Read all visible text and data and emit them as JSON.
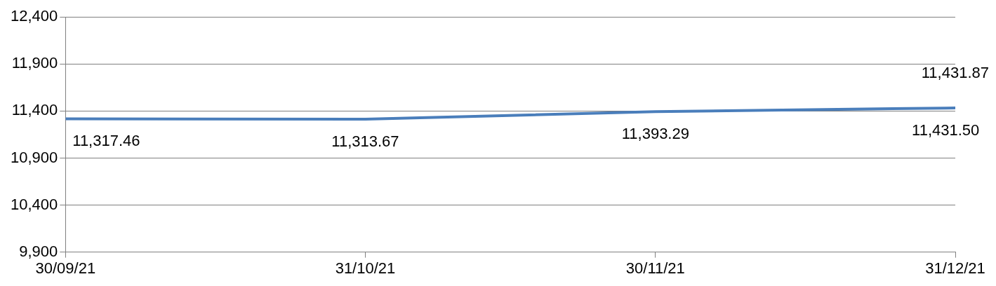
{
  "chart_data": {
    "type": "line",
    "x": [
      "2021-09-30",
      "2021-10-31",
      "2021-11-30",
      "2021-12-30",
      "2021-12-31"
    ],
    "series": [
      {
        "color": "#4a7ebb",
        "values": [
          11317.46,
          11313.67,
          11393.29,
          11431.5,
          11431.87
        ],
        "value_labels": [
          "11,317.46",
          "11,313.67",
          "11,393.29",
          "11,431.50",
          "11,431.87"
        ]
      }
    ],
    "xlim": [
      "2021-09-30",
      "2021-12-31"
    ],
    "xticks": [
      {
        "value": "2021-09-30",
        "label": "30/09/21"
      },
      {
        "value": "2021-10-31",
        "label": "31/10/21"
      },
      {
        "value": "2021-11-30",
        "label": "30/11/21"
      },
      {
        "value": "2021-12-31",
        "label": "31/12/21"
      }
    ],
    "ylim": [
      9900,
      12400
    ],
    "yticks": [
      {
        "value": 9900,
        "label": "9,900"
      },
      {
        "value": 10400,
        "label": "10,400"
      },
      {
        "value": 10900,
        "label": "10,900"
      },
      {
        "value": 11400,
        "label": "11,400"
      },
      {
        "value": 11900,
        "label": "11,900"
      },
      {
        "value": 12400,
        "label": "12,400"
      }
    ],
    "grid": "y",
    "legend": false,
    "marker": "none",
    "line_style": "solid"
  }
}
